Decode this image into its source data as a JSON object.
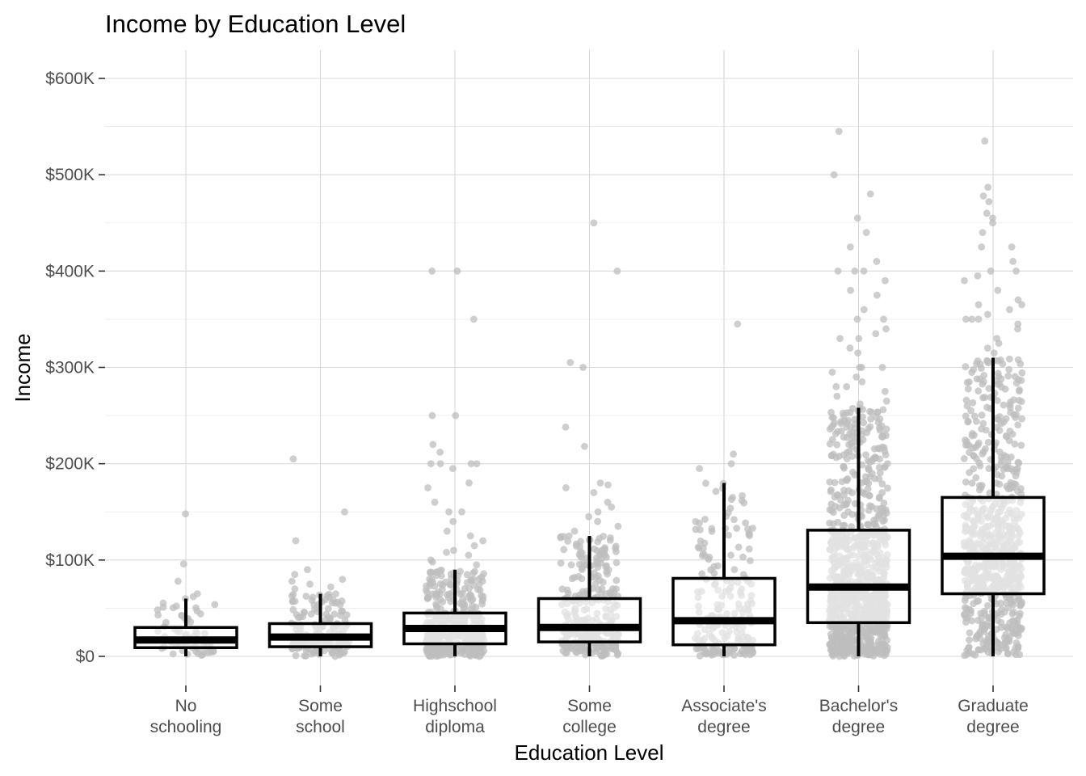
{
  "chart_data": {
    "type": "box",
    "title": "Income by Education Level",
    "xlabel": "Education Level",
    "ylabel": "Income",
    "ylim": [
      -30000,
      630000
    ],
    "yticks": [
      0,
      100000,
      200000,
      300000,
      400000,
      500000,
      600000
    ],
    "ytick_labels": [
      "$0",
      "$100K",
      "$200K",
      "$300K",
      "$400K",
      "$500K",
      "$600K"
    ],
    "grid": true,
    "legend": "none",
    "point_color": "#bdbdbd",
    "box_stroke": "#000000",
    "categories": [
      {
        "label": [
          "No",
          "schooling"
        ],
        "n": 65,
        "q1": 9000,
        "median": 17000,
        "q3": 30000,
        "whisker_low": 0,
        "whisker_high": 60000,
        "outliers": [
          148000,
          96000,
          78000,
          65000,
          62000
        ]
      },
      {
        "label": [
          "Some",
          "school"
        ],
        "n": 180,
        "q1": 10000,
        "median": 20000,
        "q3": 34000,
        "whisker_low": 0,
        "whisker_high": 65000,
        "outliers": [
          205000,
          150000,
          120000,
          90000,
          85000,
          80000,
          78000,
          75000,
          72000,
          70000
        ]
      },
      {
        "label": [
          "Highschool",
          "diploma"
        ],
        "n": 420,
        "q1": 13000,
        "median": 29000,
        "q3": 45000,
        "whisker_low": 0,
        "whisker_high": 90000,
        "outliers": [
          400000,
          400000,
          350000,
          250000,
          250000,
          220000,
          212000,
          200000,
          200000,
          200000,
          200000,
          195000,
          180000,
          175000,
          160000,
          150000,
          150000,
          140000,
          130000,
          125000,
          120000,
          115000,
          110000,
          108000,
          105000,
          100000,
          98000,
          95000
        ]
      },
      {
        "label": [
          "Some",
          "college"
        ],
        "n": 280,
        "q1": 15000,
        "median": 30000,
        "q3": 60000,
        "whisker_low": 0,
        "whisker_high": 125000,
        "outliers": [
          450000,
          400000,
          305000,
          300000,
          238000,
          218000,
          180000,
          178000,
          175000,
          170000,
          160000,
          155000,
          150000,
          145000,
          140000,
          135000,
          130000
        ]
      },
      {
        "label": [
          "Associate's",
          "degree"
        ],
        "n": 200,
        "q1": 12000,
        "median": 37000,
        "q3": 81000,
        "whisker_low": 0,
        "whisker_high": 180000,
        "outliers": [
          345000,
          210000,
          200000,
          195000
        ]
      },
      {
        "label": [
          "Bachelor's",
          "degree"
        ],
        "n": 900,
        "q1": 35000,
        "median": 72000,
        "q3": 131000,
        "whisker_low": 0,
        "whisker_high": 258000,
        "outliers": [
          545000,
          500000,
          480000,
          455000,
          440000,
          425000,
          410000,
          400000,
          400000,
          400000,
          390000,
          380000,
          375000,
          360000,
          350000,
          350000,
          340000,
          335000,
          330000,
          330000,
          320000,
          315000,
          300000,
          300000,
          300000,
          295000,
          290000,
          285000,
          280000,
          280000,
          275000,
          270000,
          265000,
          262000
        ]
      },
      {
        "label": [
          "Graduate",
          "degree"
        ],
        "n": 700,
        "q1": 65000,
        "median": 104000,
        "q3": 165000,
        "whisker_low": 0,
        "whisker_high": 310000,
        "outliers": [
          535000,
          487000,
          478000,
          472000,
          460000,
          455000,
          450000,
          440000,
          425000,
          425000,
          410000,
          400000,
          400000,
          395000,
          390000,
          380000,
          370000,
          365000,
          365000,
          360000,
          355000,
          350000,
          350000,
          350000,
          345000,
          340000,
          330000,
          325000,
          320000,
          315000
        ]
      }
    ]
  }
}
